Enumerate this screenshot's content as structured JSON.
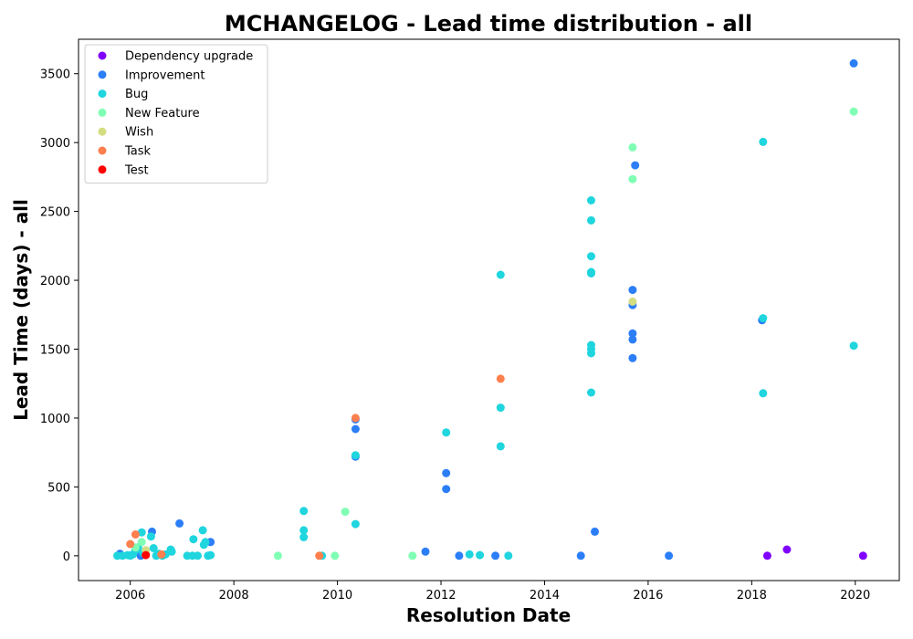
{
  "chart_data": {
    "type": "scatter",
    "title": "MCHANGELOG - Lead time distribution - all",
    "xlabel": "Resolution Date",
    "ylabel": "Lead Time (days) - all",
    "xlim": [
      2005.0,
      2020.85
    ],
    "ylim": [
      -180,
      3750
    ],
    "x_ticks": [
      2006,
      2008,
      2010,
      2012,
      2014,
      2016,
      2018,
      2020
    ],
    "x_tick_labels": [
      "2006",
      "2008",
      "2010",
      "2012",
      "2014",
      "2016",
      "2018",
      "2020"
    ],
    "y_ticks": [
      0,
      500,
      1000,
      1500,
      2000,
      2500,
      3000,
      3500
    ],
    "y_tick_labels": [
      "0",
      "500",
      "1000",
      "1500",
      "2000",
      "2500",
      "3000",
      "3500"
    ],
    "legend_position": "top-left",
    "grid": false,
    "series": [
      {
        "name": "Dependency upgrade",
        "color": "#7f00ff",
        "points": [
          [
            2018.3,
            0
          ],
          [
            2018.68,
            45
          ],
          [
            2020.15,
            0
          ]
        ]
      },
      {
        "name": "Improvement",
        "color": "#2c7ef7",
        "points": [
          [
            2005.78,
            5
          ],
          [
            2005.8,
            15
          ],
          [
            2006.2,
            0
          ],
          [
            2006.42,
            175
          ],
          [
            2006.95,
            235
          ],
          [
            2007.55,
            100
          ],
          [
            2010.35,
            720
          ],
          [
            2010.35,
            920
          ],
          [
            2010.35,
            990
          ],
          [
            2011.7,
            30
          ],
          [
            2012.1,
            600
          ],
          [
            2012.1,
            485
          ],
          [
            2012.35,
            0
          ],
          [
            2013.05,
            0
          ],
          [
            2014.7,
            0
          ],
          [
            2014.97,
            175
          ],
          [
            2015.7,
            1930
          ],
          [
            2015.7,
            1820
          ],
          [
            2015.7,
            1615
          ],
          [
            2015.7,
            1570
          ],
          [
            2015.7,
            1435
          ],
          [
            2015.75,
            2835
          ],
          [
            2016.4,
            0
          ],
          [
            2018.2,
            1710
          ],
          [
            2019.97,
            3575
          ]
        ]
      },
      {
        "name": "Bug",
        "color": "#1fd5de",
        "points": [
          [
            2005.75,
            0
          ],
          [
            2005.85,
            0
          ],
          [
            2005.95,
            5
          ],
          [
            2006.0,
            0
          ],
          [
            2006.05,
            10
          ],
          [
            2006.1,
            40
          ],
          [
            2006.15,
            60
          ],
          [
            2006.22,
            170
          ],
          [
            2006.25,
            20
          ],
          [
            2006.3,
            10
          ],
          [
            2006.4,
            140
          ],
          [
            2006.45,
            55
          ],
          [
            2006.5,
            0
          ],
          [
            2006.55,
            15
          ],
          [
            2006.62,
            0
          ],
          [
            2006.68,
            10
          ],
          [
            2006.78,
            45
          ],
          [
            2006.8,
            30
          ],
          [
            2007.1,
            0
          ],
          [
            2007.2,
            0
          ],
          [
            2007.22,
            120
          ],
          [
            2007.3,
            0
          ],
          [
            2007.4,
            185
          ],
          [
            2007.42,
            80
          ],
          [
            2007.45,
            100
          ],
          [
            2007.5,
            0
          ],
          [
            2007.55,
            5
          ],
          [
            2009.35,
            325
          ],
          [
            2009.35,
            185
          ],
          [
            2009.35,
            135
          ],
          [
            2009.7,
            0
          ],
          [
            2010.35,
            230
          ],
          [
            2010.35,
            730
          ],
          [
            2012.1,
            895
          ],
          [
            2012.55,
            10
          ],
          [
            2012.75,
            5
          ],
          [
            2013.15,
            2040
          ],
          [
            2013.15,
            1075
          ],
          [
            2013.15,
            795
          ],
          [
            2013.3,
            0
          ],
          [
            2014.9,
            2580
          ],
          [
            2014.9,
            2435
          ],
          [
            2014.9,
            2175
          ],
          [
            2014.9,
            2060
          ],
          [
            2014.9,
            2050
          ],
          [
            2014.9,
            1530
          ],
          [
            2014.9,
            1500
          ],
          [
            2014.9,
            1470
          ],
          [
            2014.9,
            1185
          ],
          [
            2018.22,
            3005
          ],
          [
            2018.22,
            1725
          ],
          [
            2018.22,
            1180
          ],
          [
            2019.97,
            1525
          ]
        ]
      },
      {
        "name": "New Feature",
        "color": "#80ffb4",
        "points": [
          [
            2006.1,
            60
          ],
          [
            2006.22,
            100
          ],
          [
            2008.85,
            0
          ],
          [
            2009.95,
            0
          ],
          [
            2010.15,
            320
          ],
          [
            2011.45,
            0
          ],
          [
            2015.7,
            2965
          ],
          [
            2015.7,
            2735
          ],
          [
            2019.97,
            3225
          ]
        ]
      },
      {
        "name": "Wish",
        "color": "#d4dd80",
        "points": [
          [
            2006.3,
            40
          ],
          [
            2015.7,
            1845
          ]
        ]
      },
      {
        "name": "Task",
        "color": "#ff7f4e",
        "points": [
          [
            2006.0,
            85
          ],
          [
            2006.1,
            155
          ],
          [
            2006.6,
            10
          ],
          [
            2009.65,
            0
          ],
          [
            2010.35,
            1000
          ],
          [
            2013.15,
            1285
          ]
        ]
      },
      {
        "name": "Test",
        "color": "#ff0000",
        "points": [
          [
            2006.3,
            5
          ]
        ]
      }
    ]
  }
}
